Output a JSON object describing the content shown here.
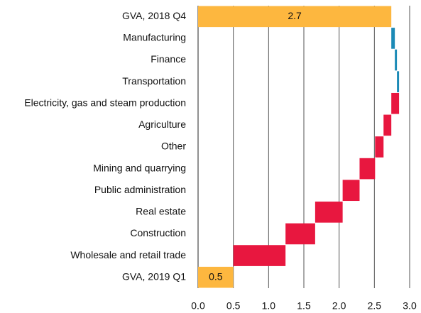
{
  "chart_data": {
    "type": "waterfall",
    "orientation": "horizontal",
    "categories": [
      "GVA, 2018  Q4",
      "Manufacturing",
      "Finance",
      "Transportation",
      "Electricity, gas and steam production",
      "Agriculture",
      "Other",
      "Mining and quarrying",
      "Public administration",
      "Real estate",
      "Construction",
      "Wholesale and retail trade",
      "GVA, 2019  Q1"
    ],
    "values": [
      2.74,
      0.05,
      0.03,
      0.03,
      -0.11,
      -0.11,
      -0.12,
      -0.22,
      -0.24,
      -0.39,
      -0.42,
      -0.74,
      0.5
    ],
    "value_labels": [
      "2.7",
      null,
      null,
      null,
      null,
      null,
      null,
      null,
      null,
      null,
      null,
      null,
      "0.5"
    ],
    "is_total": [
      true,
      false,
      false,
      false,
      false,
      false,
      false,
      false,
      false,
      false,
      false,
      false,
      true
    ],
    "colors": {
      "total": "#fdb73f",
      "increase": "#1b8ab6",
      "decrease": "#e8173f"
    },
    "xlim": [
      0,
      3
    ],
    "xticks": [
      {
        "value": 0,
        "label": "0.0"
      },
      {
        "value": 0.5,
        "label": "0.5"
      },
      {
        "value": 1,
        "label": "1.0"
      },
      {
        "value": 1.5,
        "label": "1.5"
      },
      {
        "value": 2,
        "label": "2.0"
      },
      {
        "value": 2.5,
        "label": "2.5"
      },
      {
        "value": 3,
        "label": "3.0"
      }
    ],
    "grid": true
  }
}
